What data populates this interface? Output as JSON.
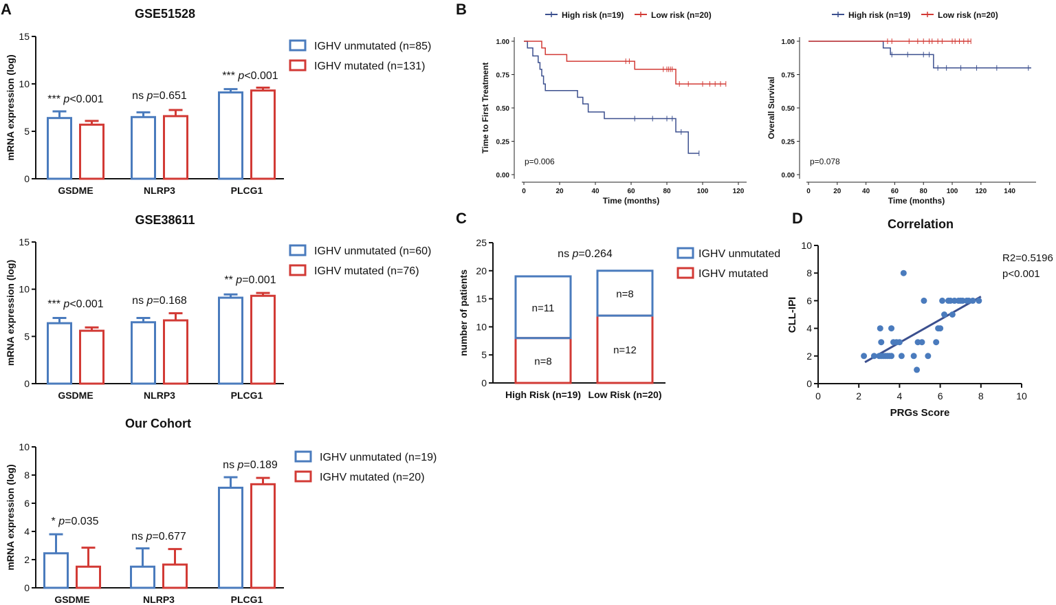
{
  "panel_labels": [
    "A",
    "B",
    "C",
    "D"
  ],
  "chart_data": [
    {
      "id": "gse51528",
      "type": "bar",
      "title": "GSE51528",
      "ylabel": "mRNA expression (log)",
      "ylim": [
        0,
        15
      ],
      "yticks": [
        "0",
        "5",
        "10",
        "15"
      ],
      "categories": [
        "GSDME",
        "NLRP3",
        "PLCG1"
      ],
      "series": [
        {
          "name": "IGHV unmutated (n=85)",
          "color": "#4a7bbd",
          "values": [
            6.4,
            6.5,
            9.1
          ],
          "errors": [
            0.7,
            0.5,
            0.35
          ]
        },
        {
          "name": "IGHV mutated (n=131)",
          "color": "#d23a35",
          "values": [
            5.7,
            6.6,
            9.3
          ],
          "errors": [
            0.4,
            0.65,
            0.3
          ]
        }
      ],
      "annotations": [
        {
          "stars": "***",
          "p": "p",
          "rest": "<0.001"
        },
        {
          "stars": "ns",
          "p": "p",
          "rest": "=0.651"
        },
        {
          "stars": "***",
          "p": "p",
          "rest": "<0.001"
        }
      ]
    },
    {
      "id": "gse38611",
      "type": "bar",
      "title": "GSE38611",
      "ylabel": "mRNA expression (log)",
      "ylim": [
        0,
        15
      ],
      "yticks": [
        "0",
        "5",
        "10",
        "15"
      ],
      "categories": [
        "GSDME",
        "NLRP3",
        "PLCG1"
      ],
      "series": [
        {
          "name": "IGHV unmutated (n=60)",
          "color": "#4a7bbd",
          "values": [
            6.4,
            6.5,
            9.1
          ],
          "errors": [
            0.55,
            0.45,
            0.35
          ]
        },
        {
          "name": "IGHV mutated (n=76)",
          "color": "#d23a35",
          "values": [
            5.6,
            6.7,
            9.3
          ],
          "errors": [
            0.35,
            0.75,
            0.3
          ]
        }
      ],
      "annotations": [
        {
          "stars": "***",
          "p": "p",
          "rest": "<0.001"
        },
        {
          "stars": "ns",
          "p": "p",
          "rest": "=0.168"
        },
        {
          "stars": "**",
          "p": "p",
          "rest": "=0.001"
        }
      ]
    },
    {
      "id": "our_cohort",
      "type": "bar",
      "title": "Our Cohort",
      "ylabel": "mRNA expression (log)",
      "ylim": [
        0,
        10
      ],
      "yticks": [
        "0",
        "2",
        "4",
        "6",
        "8",
        "10"
      ],
      "categories": [
        "GSDME",
        "NLRP3",
        "PLCG1"
      ],
      "series": [
        {
          "name": "IGHV unmutated (n=19)",
          "color": "#4a7bbd",
          "values": [
            2.45,
            1.5,
            7.1
          ],
          "errors": [
            1.35,
            1.3,
            0.75
          ]
        },
        {
          "name": "IGHV mutated (n=20)",
          "color": "#d23a35",
          "values": [
            1.5,
            1.65,
            7.35
          ],
          "errors": [
            1.35,
            1.1,
            0.45
          ]
        }
      ],
      "annotations": [
        {
          "stars": "*",
          "p": "p",
          "rest": "=0.035"
        },
        {
          "stars": "ns",
          "p": "p",
          "rest": "=0.677"
        },
        {
          "stars": "ns",
          "p": "p",
          "rest": "=0.189"
        }
      ]
    },
    {
      "id": "km_ttft",
      "type": "line",
      "title": "",
      "xlabel": "Time (months)",
      "ylabel": "Time to First Treatment",
      "xlim": [
        0,
        120
      ],
      "ylim": [
        0,
        1
      ],
      "xticks": [
        "0",
        "20",
        "40",
        "60",
        "80",
        "100",
        "120"
      ],
      "yticks": [
        "0.00",
        "0.25",
        "0.50",
        "0.75",
        "1.00"
      ],
      "pvalue": "p=0.006",
      "series": [
        {
          "name": "High risk (n=19)",
          "color": "#3b4f8e",
          "steps": [
            [
              0,
              1.0
            ],
            [
              2,
              0.95
            ],
            [
              5,
              0.89
            ],
            [
              8,
              0.84
            ],
            [
              9,
              0.79
            ],
            [
              10,
              0.74
            ],
            [
              11,
              0.68
            ],
            [
              12,
              0.63
            ],
            [
              30,
              0.58
            ],
            [
              33,
              0.53
            ],
            [
              36,
              0.47
            ],
            [
              45,
              0.42
            ],
            [
              85,
              0.32
            ],
            [
              92,
              0.16
            ],
            [
              98,
              0.16
            ]
          ],
          "censor": [
            [
              62,
              0.42
            ],
            [
              72,
              0.42
            ],
            [
              80,
              0.42
            ],
            [
              83,
              0.42
            ],
            [
              88,
              0.32
            ],
            [
              98,
              0.16
            ]
          ]
        },
        {
          "name": "Low risk (n=20)",
          "color": "#d23a35",
          "steps": [
            [
              0,
              1.0
            ],
            [
              10,
              0.95
            ],
            [
              12,
              0.9
            ],
            [
              24,
              0.85
            ],
            [
              62,
              0.79
            ],
            [
              85,
              0.68
            ],
            [
              113,
              0.68
            ]
          ],
          "censor": [
            [
              57,
              0.85
            ],
            [
              59,
              0.85
            ],
            [
              78,
              0.79
            ],
            [
              80,
              0.79
            ],
            [
              81,
              0.79
            ],
            [
              82,
              0.79
            ],
            [
              83,
              0.79
            ],
            [
              87,
              0.68
            ],
            [
              92,
              0.68
            ],
            [
              100,
              0.68
            ],
            [
              104,
              0.68
            ],
            [
              107,
              0.68
            ],
            [
              110,
              0.68
            ],
            [
              113,
              0.68
            ]
          ]
        }
      ]
    },
    {
      "id": "km_os",
      "type": "line",
      "title": "",
      "xlabel": "Time (months)",
      "ylabel": "Overall Survival",
      "xlim": [
        0,
        155
      ],
      "ylim": [
        0,
        1
      ],
      "xticks": [
        "0",
        "20",
        "40",
        "60",
        "80",
        "100",
        "120",
        "140"
      ],
      "yticks": [
        "0.00",
        "0.25",
        "0.50",
        "0.75",
        "1.00"
      ],
      "pvalue": "p=0.078",
      "series": [
        {
          "name": "High risk (n=19)",
          "color": "#3b4f8e",
          "steps": [
            [
              0,
              1.0
            ],
            [
              52,
              0.95
            ],
            [
              57,
              0.9
            ],
            [
              87,
              0.8
            ],
            [
              155,
              0.8
            ]
          ],
          "censor": [
            [
              58,
              0.9
            ],
            [
              69,
              0.9
            ],
            [
              80,
              0.9
            ],
            [
              84,
              0.9
            ],
            [
              90,
              0.8
            ],
            [
              96,
              0.8
            ],
            [
              106,
              0.8
            ],
            [
              117,
              0.8
            ],
            [
              131,
              0.8
            ],
            [
              153,
              0.8
            ]
          ]
        },
        {
          "name": "Low risk (n=20)",
          "color": "#d23a35",
          "steps": [
            [
              0,
              1.0
            ],
            [
              113,
              1.0
            ]
          ],
          "censor": [
            [
              55,
              1.0
            ],
            [
              58,
              1.0
            ],
            [
              70,
              1.0
            ],
            [
              76,
              1.0
            ],
            [
              80,
              1.0
            ],
            [
              84,
              1.0
            ],
            [
              86,
              1.0
            ],
            [
              90,
              1.0
            ],
            [
              93,
              1.0
            ],
            [
              100,
              1.0
            ],
            [
              102,
              1.0
            ],
            [
              105,
              1.0
            ],
            [
              108,
              1.0
            ],
            [
              111,
              1.0
            ],
            [
              113,
              1.0
            ]
          ]
        }
      ]
    },
    {
      "id": "stacked",
      "type": "bar",
      "stacked": true,
      "title": "",
      "ylabel": "number of patients",
      "ylim": [
        0,
        25
      ],
      "yticks": [
        "0",
        "5",
        "10",
        "15",
        "20",
        "25"
      ],
      "categories": [
        "High Risk (n=19)",
        "Low Risk (n=20)"
      ],
      "annotation": {
        "stars": "ns",
        "p": "p",
        "rest": "=0.264"
      },
      "series": [
        {
          "name": "IGHV mutated",
          "color": "#d23a35",
          "values": [
            8,
            12
          ],
          "labels": [
            "n=8",
            "n=12"
          ]
        },
        {
          "name": "IGHV unmutated",
          "color": "#4a7bbd",
          "values": [
            11,
            8
          ],
          "labels": [
            "n=11",
            "n=8"
          ]
        }
      ]
    },
    {
      "id": "correlation",
      "type": "scatter",
      "title": "Correlation",
      "xlabel": "PRGs Score",
      "ylabel": "CLL-IPI",
      "xlim": [
        0,
        10
      ],
      "ylim": [
        0,
        10
      ],
      "xticks": [
        "0",
        "2",
        "4",
        "6",
        "8",
        "10"
      ],
      "yticks": [
        "0",
        "2",
        "4",
        "6",
        "8",
        "10"
      ],
      "r2": "R2=0.5196",
      "pvalue": "p<0.001",
      "color": "#4a7bbd",
      "fit": [
        [
          2.3,
          1.55
        ],
        [
          8.0,
          6.3
        ]
      ],
      "points": [
        [
          2.25,
          2
        ],
        [
          2.75,
          2
        ],
        [
          3.0,
          2
        ],
        [
          3.1,
          2
        ],
        [
          3.2,
          2
        ],
        [
          3.3,
          2
        ],
        [
          3.4,
          2
        ],
        [
          3.5,
          2
        ],
        [
          3.6,
          2
        ],
        [
          3.1,
          3
        ],
        [
          3.7,
          3
        ],
        [
          3.85,
          3
        ],
        [
          4.1,
          2
        ],
        [
          4.0,
          3
        ],
        [
          4.2,
          8
        ],
        [
          3.05,
          4
        ],
        [
          3.6,
          4
        ],
        [
          4.7,
          2
        ],
        [
          4.9,
          3
        ],
        [
          5.1,
          3
        ],
        [
          4.85,
          1
        ],
        [
          5.4,
          2
        ],
        [
          5.2,
          6
        ],
        [
          5.8,
          3
        ],
        [
          5.9,
          4
        ],
        [
          6.0,
          4
        ],
        [
          6.2,
          5
        ],
        [
          6.4,
          6
        ],
        [
          6.6,
          5
        ],
        [
          6.5,
          6
        ],
        [
          6.7,
          6
        ],
        [
          6.9,
          6
        ],
        [
          7.0,
          6
        ],
        [
          7.1,
          6
        ],
        [
          7.3,
          6
        ],
        [
          7.6,
          6
        ],
        [
          7.9,
          6
        ],
        [
          7.4,
          6
        ],
        [
          6.1,
          6
        ]
      ]
    }
  ]
}
